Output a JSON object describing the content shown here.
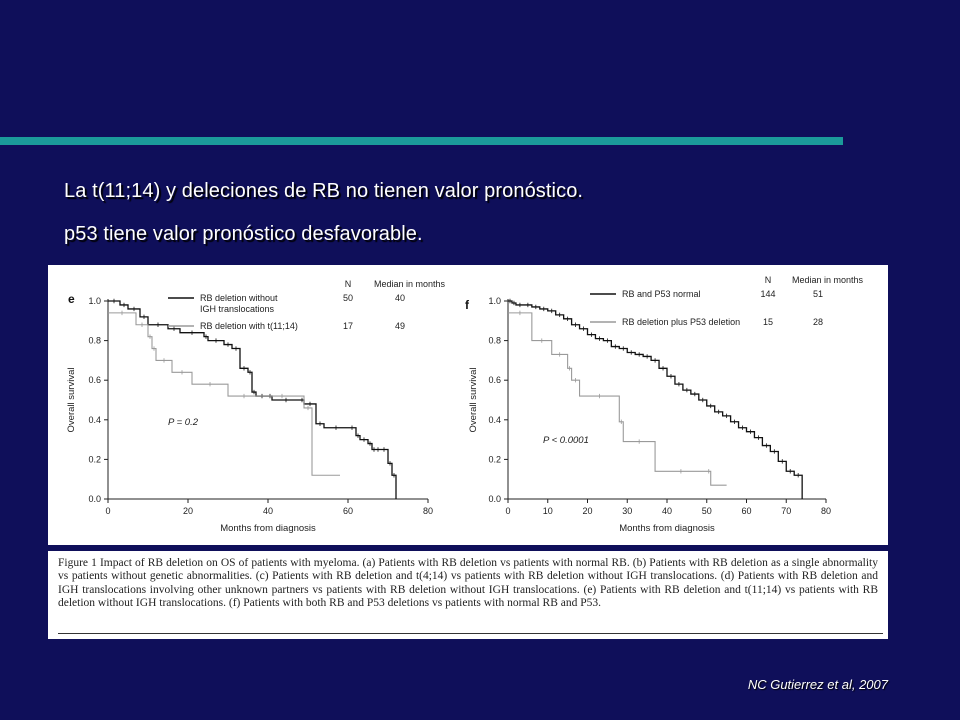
{
  "slide": {
    "headline_1": "La t(11;14) y deleciones de RB no tienen valor pronóstico.",
    "headline_2": "p53 tiene valor pronóstico desfavorable.",
    "citation": "NC Gutierrez et al, 2007",
    "colors": {
      "background": "#0f0f5a",
      "accent_bar": "#1b9a9a",
      "curve_dark": "#111111",
      "curve_light": "#9a9a9a"
    }
  },
  "figure": {
    "caption": "Figure 1   Impact of RB deletion on OS of patients with myeloma. (a) Patients with RB deletion vs patients with normal RB. (b) Patients with RB deletion as a single abnormality vs patients without genetic abnormalities. (c) Patients with RB deletion and t(4;14) vs patients with RB deletion without IGH translocations. (d) Patients with RB deletion and IGH translocations involving other unknown partners vs patients with RB deletion without IGH translocations. (e) Patients with RB deletion and t(11;14) vs patients with RB deletion without IGH translocations. (f) Patients with both RB and P53 deletions vs patients with normal RB and P53."
  },
  "chart_data": [
    {
      "type": "line",
      "panel": "e",
      "xlabel": "Months from diagnosis",
      "ylabel": "Overall survival",
      "xlim": [
        0,
        80
      ],
      "ylim": [
        0,
        1.0
      ],
      "xticks": [
        0,
        20,
        40,
        60,
        80
      ],
      "yticks": [
        "0.0",
        "0.2",
        "0.4",
        "0.6",
        "0.8",
        "1.0"
      ],
      "legend_header": {
        "n": "N",
        "median": "Median in months"
      },
      "annotation": "P = 0.2",
      "series": [
        {
          "name": "RB deletion without IGH translocations",
          "legend_lines": [
            "RB deletion without",
            "IGH translocations"
          ],
          "n": "50",
          "median": "40",
          "style": "dark",
          "x": [
            0,
            3,
            5,
            8,
            10,
            15,
            18,
            24,
            25,
            29,
            31,
            33,
            35,
            36,
            37,
            40,
            41,
            48,
            49,
            52,
            54,
            60,
            62,
            63,
            65,
            66,
            67,
            68,
            70,
            71,
            72
          ],
          "y": [
            1.0,
            0.98,
            0.96,
            0.92,
            0.88,
            0.86,
            0.84,
            0.82,
            0.8,
            0.78,
            0.76,
            0.66,
            0.64,
            0.54,
            0.52,
            0.52,
            0.5,
            0.5,
            0.48,
            0.38,
            0.36,
            0.36,
            0.32,
            0.3,
            0.28,
            0.25,
            0.25,
            0.25,
            0.18,
            0.12,
            0.0
          ],
          "end_x": 72
        },
        {
          "name": "RB deletion with t(11;14)",
          "legend_lines": [
            "RB deletion with t(11;14)"
          ],
          "n": "17",
          "median": "49",
          "style": "light",
          "x": [
            0,
            7,
            10,
            11,
            12,
            16,
            21,
            30,
            38,
            49,
            51
          ],
          "y": [
            0.94,
            0.88,
            0.82,
            0.76,
            0.7,
            0.64,
            0.58,
            0.52,
            0.52,
            0.46,
            0.12
          ],
          "end_x": 58
        }
      ]
    },
    {
      "type": "line",
      "panel": "f",
      "xlabel": "Months from diagnosis",
      "ylabel": "Overall survival",
      "xlim": [
        0,
        80
      ],
      "ylim": [
        0,
        1.0
      ],
      "xticks": [
        0,
        10,
        20,
        30,
        40,
        50,
        60,
        70,
        80
      ],
      "yticks": [
        "0.0",
        "0.2",
        "0.4",
        "0.6",
        "0.8",
        "1.0"
      ],
      "legend_header": {
        "n": "N",
        "median": "Median in months"
      },
      "annotation": "P < 0.0001",
      "series": [
        {
          "name": "RB and P53 normal",
          "legend_lines": [
            "RB and P53 normal"
          ],
          "n": "144",
          "median": "51",
          "style": "dark",
          "x": [
            0,
            1,
            2,
            4,
            6,
            8,
            10,
            12,
            14,
            16,
            18,
            20,
            22,
            24,
            26,
            28,
            30,
            32,
            34,
            36,
            38,
            40,
            42,
            44,
            46,
            48,
            50,
            52,
            54,
            56,
            58,
            60,
            62,
            64,
            66,
            68,
            70,
            72,
            74
          ],
          "y": [
            1.0,
            0.99,
            0.98,
            0.98,
            0.97,
            0.96,
            0.95,
            0.93,
            0.91,
            0.88,
            0.86,
            0.83,
            0.81,
            0.8,
            0.77,
            0.76,
            0.74,
            0.73,
            0.72,
            0.7,
            0.66,
            0.62,
            0.58,
            0.55,
            0.53,
            0.5,
            0.47,
            0.44,
            0.42,
            0.39,
            0.36,
            0.34,
            0.31,
            0.27,
            0.24,
            0.19,
            0.14,
            0.12,
            0.0
          ],
          "end_x": 74
        },
        {
          "name": "RB deletion plus P53 deletion",
          "legend_lines": [
            "RB deletion plus P53 deletion"
          ],
          "n": "15",
          "median": "28",
          "style": "light",
          "x": [
            0,
            6,
            11,
            15,
            16,
            18,
            28,
            29,
            37,
            50,
            51
          ],
          "y": [
            0.94,
            0.8,
            0.73,
            0.66,
            0.6,
            0.52,
            0.39,
            0.29,
            0.14,
            0.14,
            0.07
          ],
          "end_x": 55
        }
      ]
    }
  ]
}
